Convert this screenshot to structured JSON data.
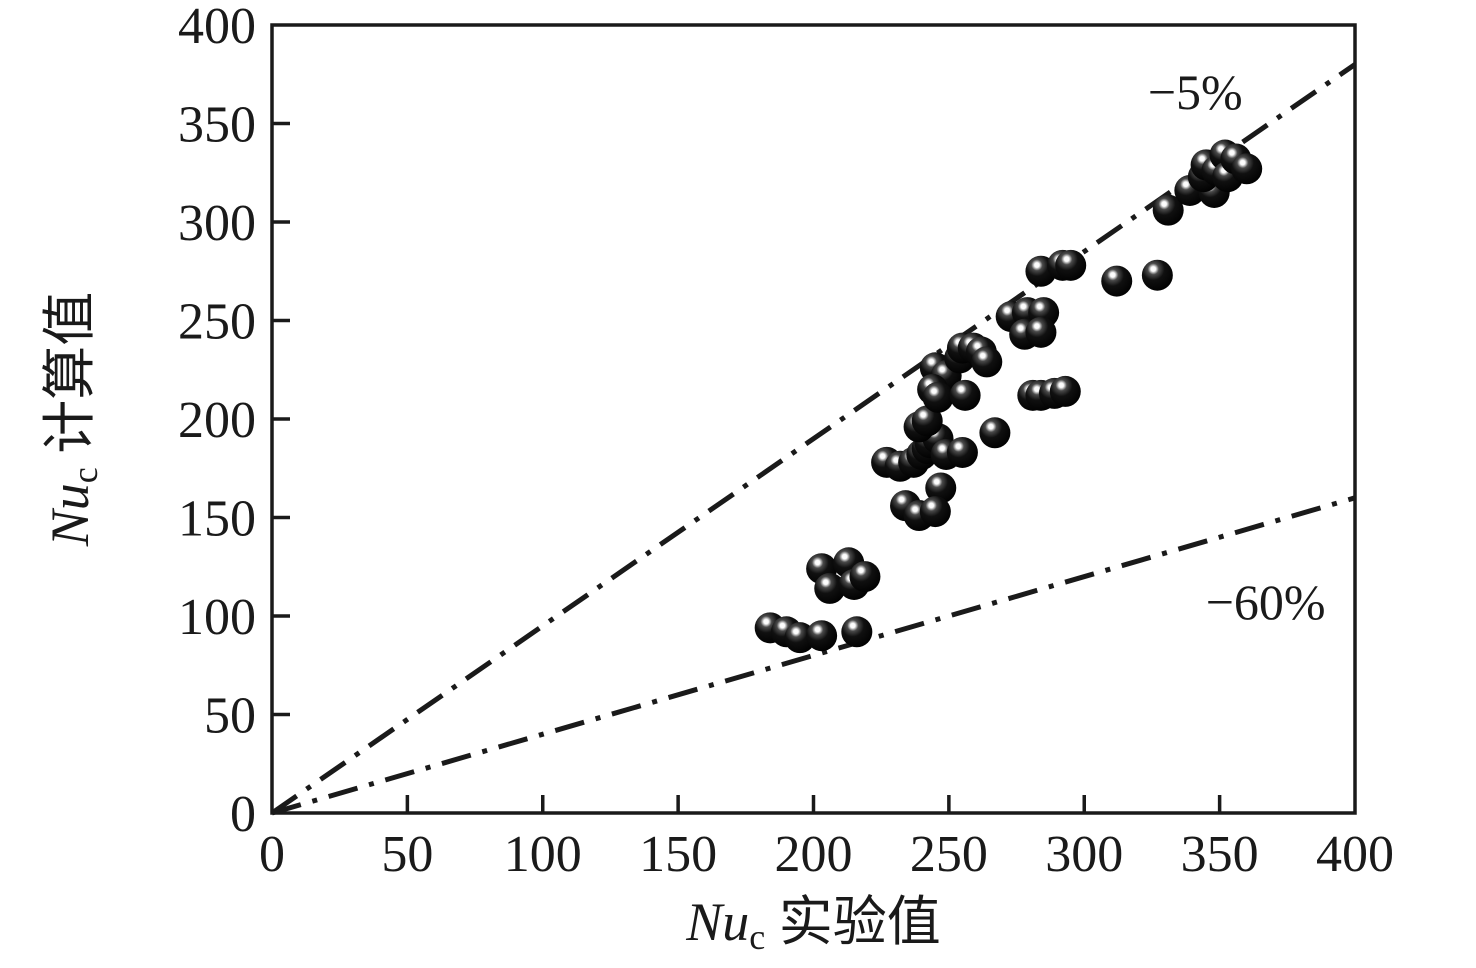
{
  "figure": {
    "background": "#ffffff",
    "ink_color": "#1a1a1a",
    "marker_color": "#000000",
    "marker_highlight": "#ffffff"
  },
  "chart_data": {
    "type": "scatter",
    "title": "",
    "xlabel": {
      "var": "Nu",
      "sub": "c",
      "rest": " 实验值"
    },
    "ylabel": {
      "var": "Nu",
      "sub": "c",
      "rest": " 计算值"
    },
    "xlim": [
      0,
      400
    ],
    "ylim": [
      0,
      400
    ],
    "x_ticks": [
      0,
      50,
      100,
      150,
      200,
      250,
      300,
      350,
      400
    ],
    "y_ticks": [
      0,
      50,
      100,
      150,
      200,
      250,
      300,
      350,
      400
    ],
    "grid": false,
    "legend": "none",
    "marker": {
      "shape": "sphere",
      "radius_px": 15.5
    },
    "ref_lines": [
      {
        "label": "−5%",
        "slope": 0.95,
        "style": "dash-dot"
      },
      {
        "label": "−60%",
        "slope": 0.4,
        "style": "dash-dot"
      }
    ],
    "annotations": [
      {
        "text": "−5%",
        "x": 341,
        "y": 366
      },
      {
        "text": "−60%",
        "x": 367,
        "y": 107
      }
    ],
    "points": [
      [
        184,
        94
      ],
      [
        190,
        92
      ],
      [
        195,
        89
      ],
      [
        203,
        90
      ],
      [
        216,
        92
      ],
      [
        203,
        124
      ],
      [
        213,
        127
      ],
      [
        206,
        114
      ],
      [
        215,
        116
      ],
      [
        219,
        120
      ],
      [
        227,
        178
      ],
      [
        232,
        176
      ],
      [
        237,
        178
      ],
      [
        240,
        182
      ],
      [
        242,
        185
      ],
      [
        243,
        188
      ],
      [
        246,
        190
      ],
      [
        239,
        196
      ],
      [
        242,
        199
      ],
      [
        249,
        182
      ],
      [
        255,
        183
      ],
      [
        267,
        193
      ],
      [
        247,
        165
      ],
      [
        234,
        156
      ],
      [
        239,
        151
      ],
      [
        245,
        153
      ],
      [
        245,
        226
      ],
      [
        249,
        222
      ],
      [
        244,
        215
      ],
      [
        246,
        211
      ],
      [
        256,
        212
      ],
      [
        254,
        231
      ],
      [
        255,
        236
      ],
      [
        259,
        236
      ],
      [
        262,
        234
      ],
      [
        264,
        229
      ],
      [
        281,
        212
      ],
      [
        284,
        212
      ],
      [
        289,
        213
      ],
      [
        293,
        214
      ],
      [
        273,
        252
      ],
      [
        279,
        254
      ],
      [
        285,
        254
      ],
      [
        278,
        243
      ],
      [
        284,
        244
      ],
      [
        284,
        275
      ],
      [
        292,
        278
      ],
      [
        295,
        278
      ],
      [
        312,
        270
      ],
      [
        327,
        273
      ],
      [
        331,
        306
      ],
      [
        339,
        316
      ],
      [
        348,
        315
      ],
      [
        344,
        323
      ],
      [
        345,
        329
      ],
      [
        349,
        326
      ],
      [
        352,
        334
      ],
      [
        353,
        323
      ],
      [
        356,
        332
      ],
      [
        360,
        327
      ]
    ]
  }
}
